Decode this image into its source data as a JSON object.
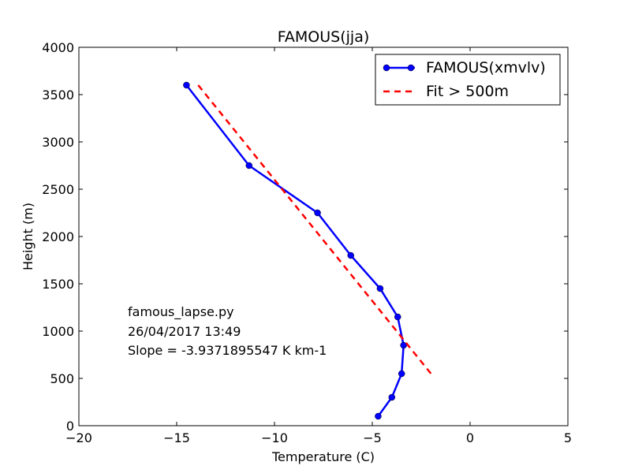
{
  "chart_data": {
    "type": "line",
    "title": "FAMOUS(jja)",
    "xlabel": "Temperature (C)",
    "ylabel": "Height (m)",
    "xlim": [
      -20,
      5
    ],
    "ylim": [
      0,
      4000
    ],
    "xticks": [
      -20,
      -15,
      -10,
      -5,
      0,
      5
    ],
    "yticks": [
      0,
      500,
      1000,
      1500,
      2000,
      2500,
      3000,
      3500,
      4000
    ],
    "xtick_labels": [
      "−20",
      "−15",
      "−10",
      "−5",
      "0",
      "5"
    ],
    "ytick_labels": [
      "0",
      "500",
      "1000",
      "1500",
      "2000",
      "2500",
      "3000",
      "3500",
      "4000"
    ],
    "grid": false,
    "legend_position": "top-right",
    "series": [
      {
        "name": "FAMOUS(xmvlv)",
        "style": "solid-with-markers",
        "color": "#0000ff",
        "x": [
          -14.5,
          -11.3,
          -7.8,
          -6.1,
          -4.6,
          -3.7,
          -3.4,
          -3.5,
          -4.0,
          -4.7
        ],
        "y": [
          3600,
          2750,
          2250,
          1800,
          1450,
          1150,
          850,
          550,
          300,
          100
        ]
      },
      {
        "name": "Fit > 500m",
        "style": "dashed",
        "color": "#ff0000",
        "x": [
          -13.9,
          -2.0
        ],
        "y": [
          3600,
          550
        ]
      }
    ],
    "annotations": [
      "famous_lapse.py",
      "26/04/2017 13:49",
      "Slope = -3.9371895547 K km-1"
    ]
  }
}
